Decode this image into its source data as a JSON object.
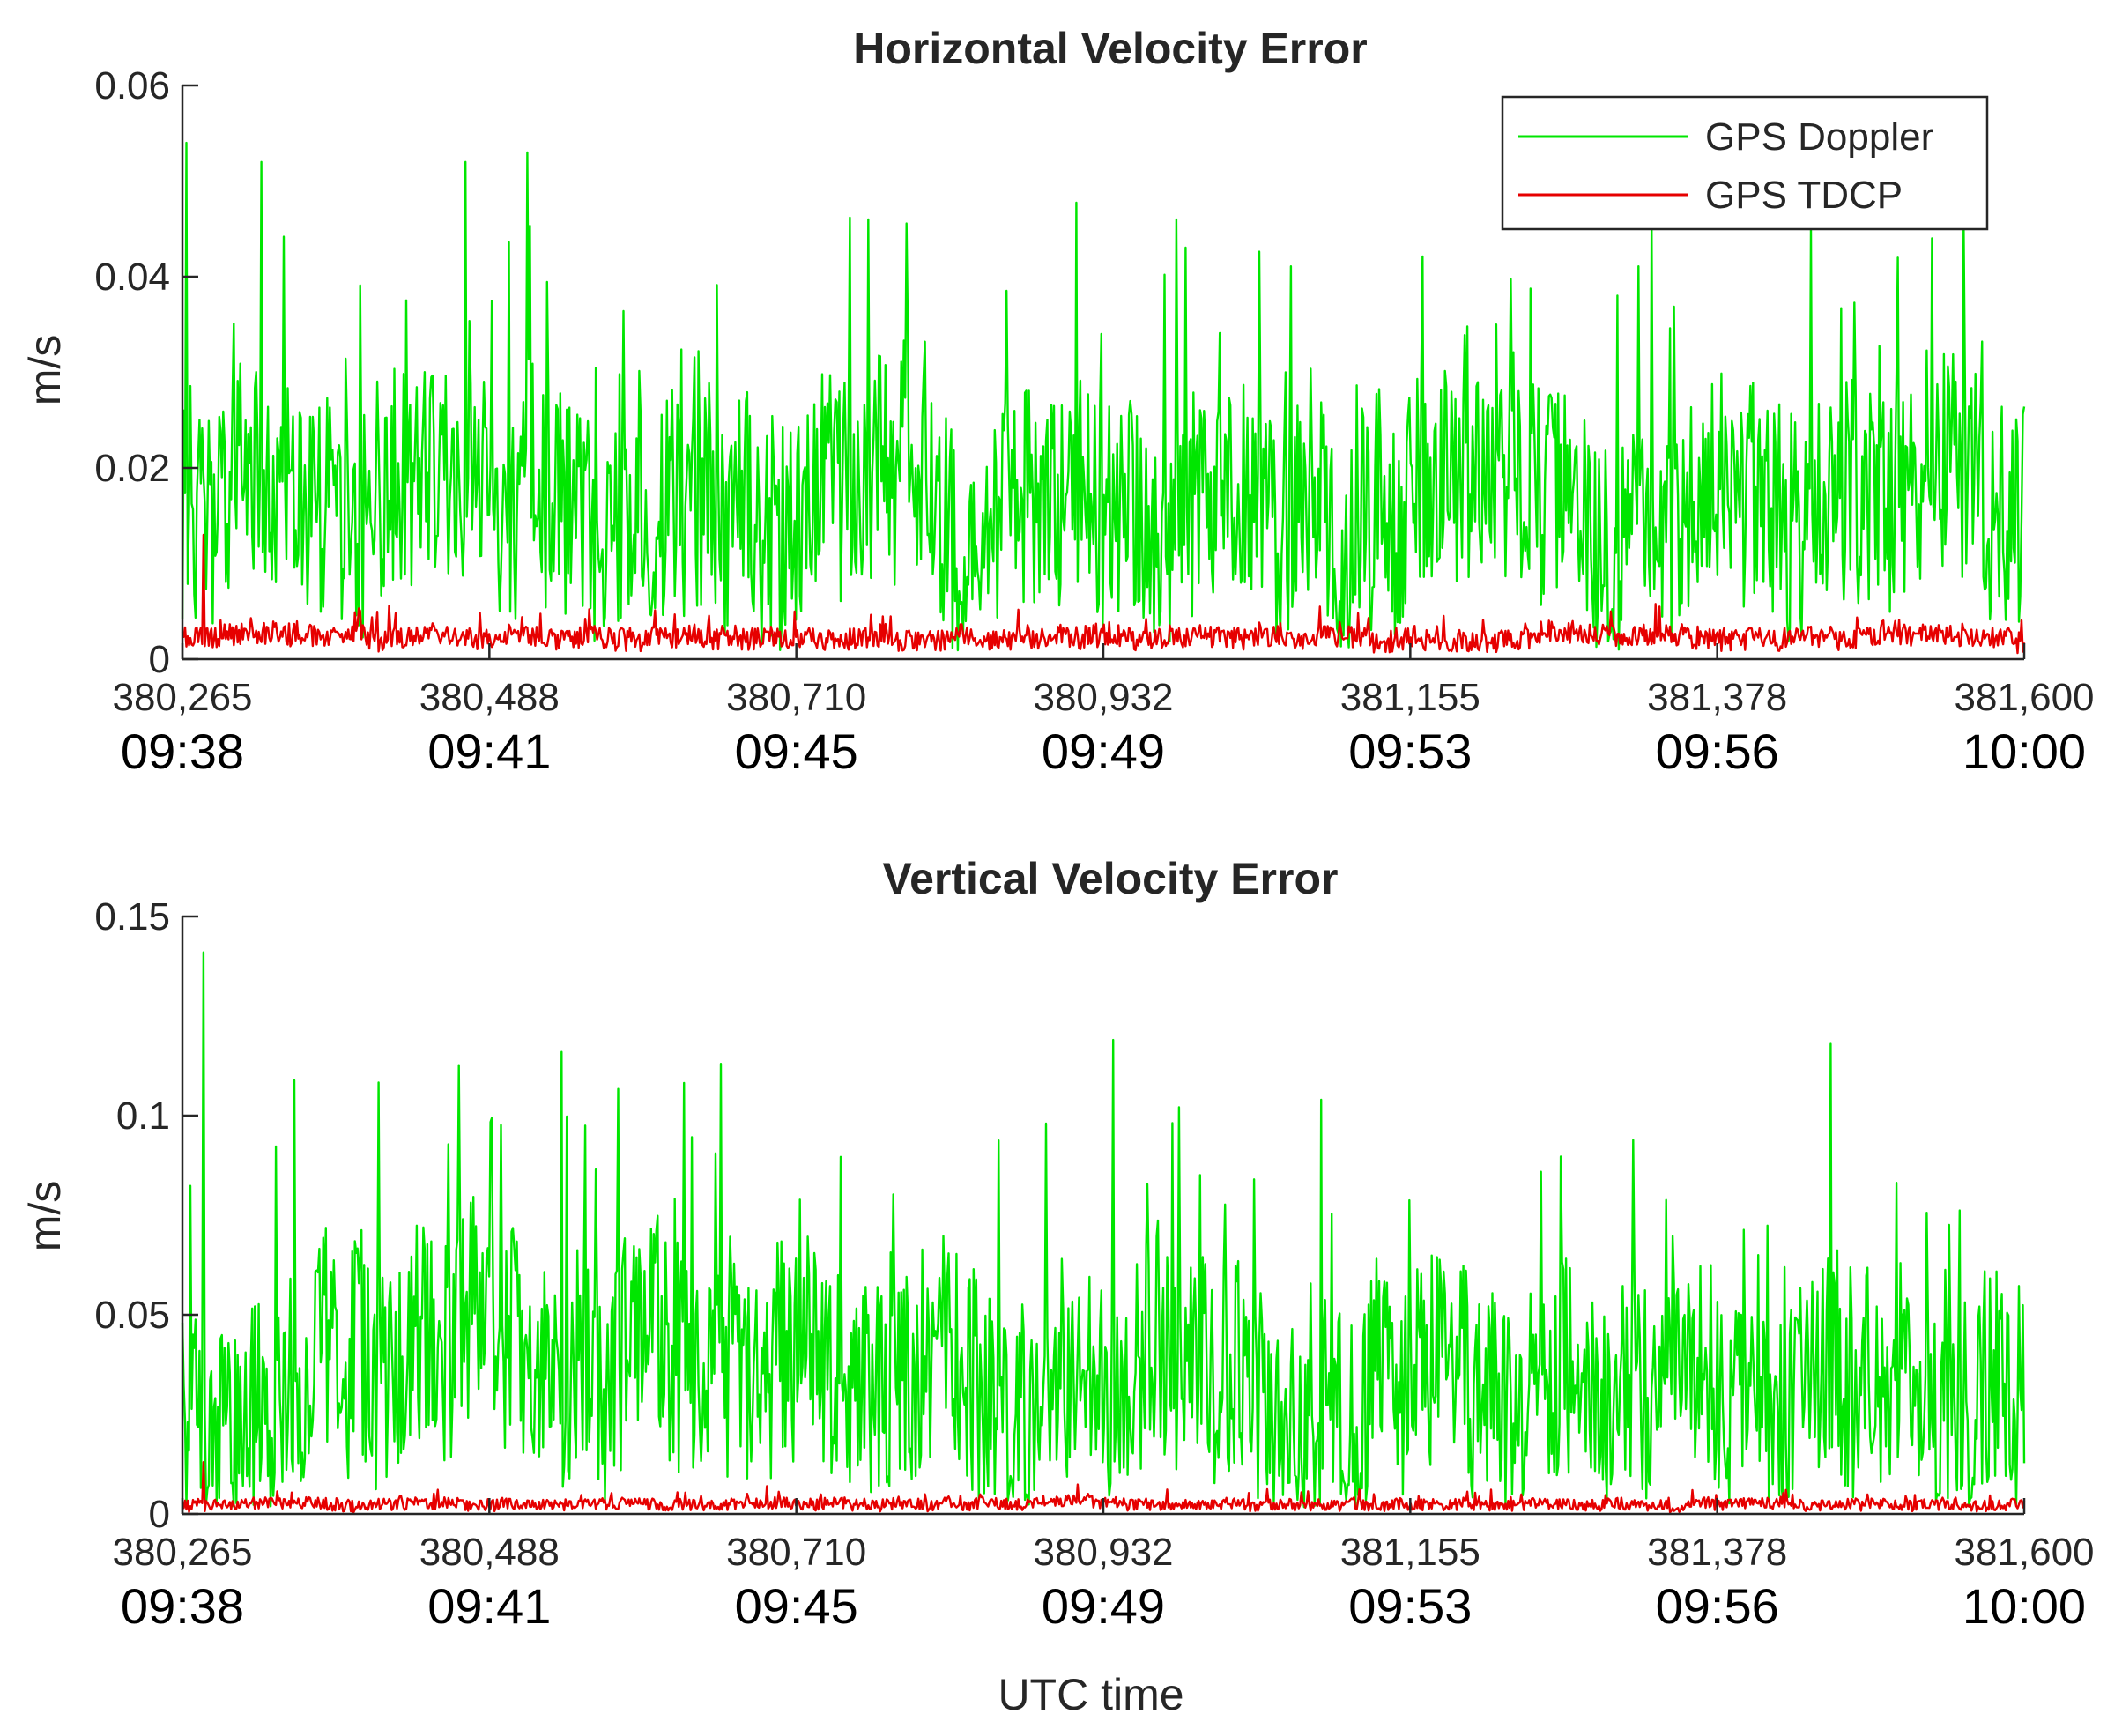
{
  "chart_data": [
    {
      "type": "line",
      "title": "Horizontal Velocity Error",
      "ylabel": "m/s",
      "xlabel": "",
      "xlim": [
        380265,
        381600
      ],
      "ylim": [
        0,
        0.06
      ],
      "grid": false,
      "legend": {
        "position": "top-right",
        "entries": [
          "GPS Doppler",
          "GPS TDCP"
        ]
      },
      "x_ticks": [
        "380,265",
        "380,488",
        "380,710",
        "380,932",
        "381,155",
        "381,378",
        "381,600"
      ],
      "x_ticks_secondary": [
        "09:38",
        "09:41",
        "09:45",
        "09:49",
        "09:53",
        "09:56",
        "10:00"
      ],
      "y_ticks": [
        "0",
        "0.02",
        "0.04",
        "0.06"
      ],
      "series": [
        {
          "name": "GPS Doppler",
          "color": "#00e600",
          "baseline": 0.017,
          "spread": 0.012,
          "spike_max": 0.054,
          "notable_peaks": [
            [
              380268,
              0.054
            ],
            [
              380322,
              0.052
            ],
            [
              380470,
              0.052
            ],
            [
              380515,
              0.053
            ],
            [
              380762,
              0.046
            ],
            [
              380985,
              0.046
            ],
            [
              381330,
              0.046
            ],
            [
              381445,
              0.045
            ]
          ]
        },
        {
          "name": "GPS TDCP",
          "color": "#e60000",
          "baseline": 0.0022,
          "spread": 0.0012,
          "spike_max": 0.013,
          "notable_peaks": [
            [
              380280,
              0.013
            ],
            [
              381300,
              0.005
            ]
          ]
        }
      ]
    },
    {
      "type": "line",
      "title": "Vertical Velocity Error",
      "ylabel": "m/s",
      "xlabel": "UTC time",
      "xlim": [
        380265,
        381600
      ],
      "ylim": [
        0,
        0.15
      ],
      "grid": false,
      "legend": null,
      "x_ticks": [
        "380,265",
        "380,488",
        "380,710",
        "380,932",
        "381,155",
        "381,378",
        "381,600"
      ],
      "x_ticks_secondary": [
        "09:38",
        "09:41",
        "09:45",
        "09:49",
        "09:53",
        "09:56",
        "10:00"
      ],
      "y_ticks": [
        "0",
        "0.05",
        "0.1",
        "0.15"
      ],
      "series": [
        {
          "name": "GPS Doppler",
          "color": "#00e600",
          "baseline": 0.033,
          "spread": 0.028,
          "spike_max": 0.141,
          "notable_peaks": [
            [
              380280,
              0.141
            ],
            [
              380540,
              0.116
            ],
            [
              380940,
              0.119
            ],
            [
              381460,
              0.118
            ],
            [
              380655,
              0.113
            ],
            [
              381090,
              0.104
            ]
          ]
        },
        {
          "name": "GPS TDCP",
          "color": "#e60000",
          "baseline": 0.0025,
          "spread": 0.0015,
          "spike_max": 0.013,
          "notable_peaks": [
            [
              380280,
              0.013
            ],
            [
              381360,
              0.006
            ]
          ]
        }
      ]
    }
  ]
}
